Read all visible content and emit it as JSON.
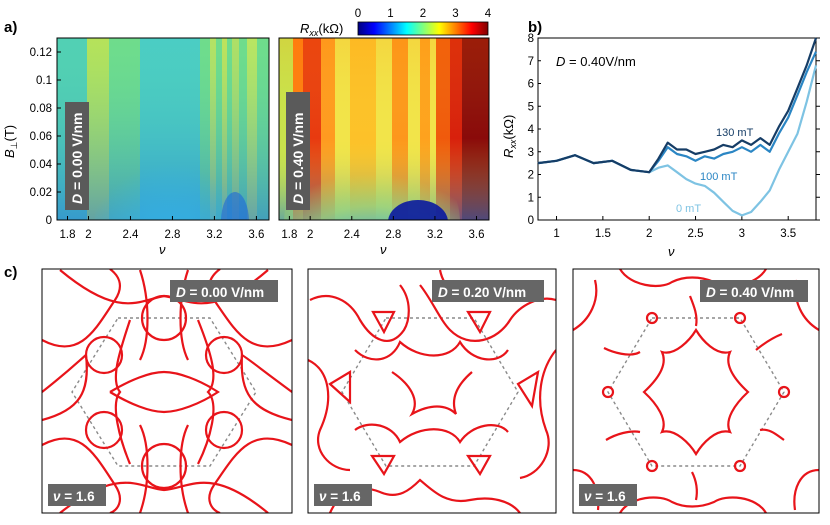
{
  "figure": {
    "panel_labels": [
      "a)",
      "b)",
      "c)"
    ],
    "colorbar": {
      "label_main": "R",
      "label_sub": "xx",
      "label_unit": "(kΩ)",
      "ticks": [
        "0",
        "1",
        "2",
        "3",
        "4"
      ],
      "range": [
        0,
        4
      ]
    },
    "panel_a": {
      "ylabel_main": "B",
      "ylabel_sub": "⊥",
      "ylabel_unit": "(T)",
      "xlabel": "ν",
      "yticks": [
        "0",
        "0.02",
        "0.04",
        "0.06",
        "0.08",
        "0.1",
        "0.12"
      ],
      "xticks": [
        "1.8",
        "2",
        "2.4",
        "2.8",
        "3.2",
        "3.6"
      ],
      "maps": [
        {
          "badge_prefix": "D",
          "badge_value": " = 0.00 V/nm",
          "D": 0.0
        },
        {
          "badge_prefix": "D",
          "badge_value": " = 0.40 V/nm",
          "D": 0.4
        }
      ]
    },
    "panel_c": {
      "maps": [
        {
          "badge_prefix": "D",
          "badge_value": " = 0.00 V/nm",
          "nu_prefix": "ν",
          "nu_value": " = 1.6"
        },
        {
          "badge_prefix": "D",
          "badge_value": " = 0.20 V/nm",
          "nu_prefix": "ν",
          "nu_value": " = 1.6"
        },
        {
          "badge_prefix": "D",
          "badge_value": " = 0.40 V/nm",
          "nu_prefix": "ν",
          "nu_value": " = 1.6"
        }
      ]
    }
  },
  "chart_data": {
    "type": "line",
    "annotation_prefix": "D",
    "annotation_value": " = 0.40V/nm",
    "xlabel": "ν",
    "ylabel_main": "R",
    "ylabel_sub": "xx",
    "ylabel_unit": "(kΩ)",
    "xlim": [
      0.8,
      3.8
    ],
    "ylim": [
      0,
      8
    ],
    "xticks": [
      "1",
      "1.5",
      "2",
      "2.5",
      "3",
      "3.5"
    ],
    "yticks": [
      "0",
      "1",
      "2",
      "3",
      "4",
      "5",
      "6",
      "7",
      "8"
    ],
    "x": [
      0.8,
      1.0,
      1.2,
      1.4,
      1.6,
      1.8,
      2.0,
      2.1,
      2.2,
      2.3,
      2.4,
      2.5,
      2.6,
      2.7,
      2.8,
      2.9,
      3.0,
      3.1,
      3.2,
      3.3,
      3.4,
      3.5,
      3.6,
      3.7,
      3.8
    ],
    "series": [
      {
        "name": "0 mT",
        "color": "#7ec3e3",
        "values": [
          2.5,
          2.6,
          2.85,
          2.5,
          2.6,
          2.2,
          2.1,
          2.3,
          2.4,
          2.1,
          1.8,
          1.6,
          1.5,
          1.2,
          0.8,
          0.4,
          0.2,
          0.35,
          0.8,
          1.3,
          2.2,
          3.0,
          3.8,
          5.2,
          6.8
        ]
      },
      {
        "name": "100 mT",
        "color": "#2b86c4",
        "values": [
          2.5,
          2.6,
          2.85,
          2.5,
          2.6,
          2.2,
          2.1,
          2.6,
          3.2,
          2.9,
          2.8,
          2.6,
          2.8,
          2.7,
          2.9,
          3.0,
          3.2,
          3.0,
          3.3,
          3.0,
          3.8,
          4.5,
          5.5,
          6.5,
          7.4
        ]
      },
      {
        "name": "130 mT",
        "color": "#163d66",
        "values": [
          2.5,
          2.6,
          2.85,
          2.5,
          2.6,
          2.2,
          2.1,
          2.7,
          3.4,
          3.1,
          3.1,
          2.9,
          3.0,
          3.1,
          3.3,
          3.2,
          3.5,
          3.3,
          3.6,
          3.3,
          4.1,
          4.8,
          5.8,
          6.8,
          8.0
        ]
      }
    ]
  }
}
